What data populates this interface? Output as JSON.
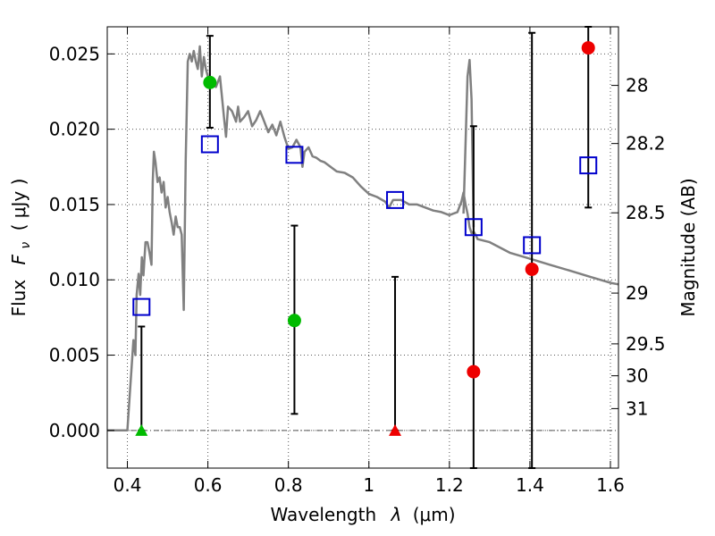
{
  "chart_data": {
    "type": "scatter",
    "xlabel_text": "Wavelength",
    "xlabel_symbol": "λ",
    "xlabel_unit": "(μm)",
    "ylabel_text": "Flux",
    "ylabel_symbol": "F",
    "ylabel_subscript": "ν",
    "ylabel_unit": "( μJy )",
    "y2label": "Magnitude (AB)",
    "xlim": [
      0.35,
      1.62
    ],
    "ylim": [
      -0.0025,
      0.0268
    ],
    "x_ticks": [
      {
        "value": 0.4,
        "label": "0.4"
      },
      {
        "value": 0.6,
        "label": "0.6"
      },
      {
        "value": 0.8,
        "label": "0.8"
      },
      {
        "value": 1.0,
        "label": "1"
      },
      {
        "value": 1.2,
        "label": "1.2"
      },
      {
        "value": 1.4,
        "label": "1.4"
      },
      {
        "value": 1.6,
        "label": "1.6"
      }
    ],
    "y_ticks": [
      {
        "value": 0.0,
        "label": "0.000"
      },
      {
        "value": 0.005,
        "label": "0.005"
      },
      {
        "value": 0.01,
        "label": "0.010"
      },
      {
        "value": 0.015,
        "label": "0.015"
      },
      {
        "value": 0.02,
        "label": "0.020"
      },
      {
        "value": 0.025,
        "label": "0.025"
      }
    ],
    "y2_ticks": [
      {
        "flux": 0.02291,
        "label": "28"
      },
      {
        "flux": 0.01905,
        "label": "28.2"
      },
      {
        "flux": 0.01445,
        "label": "28.5"
      },
      {
        "flux": 0.00912,
        "label": "29"
      },
      {
        "flux": 0.00575,
        "label": "29.5"
      },
      {
        "flux": 0.00363,
        "label": "30"
      },
      {
        "flux": 0.00145,
        "label": "31"
      }
    ],
    "grid": true,
    "model_sed": {
      "color": "#808080",
      "x": [
        0.35,
        0.4,
        0.415,
        0.42,
        0.423,
        0.428,
        0.432,
        0.436,
        0.44,
        0.445,
        0.45,
        0.455,
        0.46,
        0.463,
        0.466,
        0.47,
        0.475,
        0.48,
        0.485,
        0.49,
        0.495,
        0.5,
        0.505,
        0.51,
        0.515,
        0.52,
        0.525,
        0.53,
        0.535,
        0.54,
        0.545,
        0.55,
        0.555,
        0.56,
        0.565,
        0.57,
        0.575,
        0.58,
        0.585,
        0.59,
        0.595,
        0.6,
        0.61,
        0.62,
        0.63,
        0.64,
        0.645,
        0.65,
        0.66,
        0.67,
        0.675,
        0.68,
        0.69,
        0.7,
        0.71,
        0.72,
        0.73,
        0.74,
        0.75,
        0.76,
        0.77,
        0.78,
        0.79,
        0.8,
        0.81,
        0.82,
        0.83,
        0.835,
        0.84,
        0.85,
        0.86,
        0.87,
        0.88,
        0.89,
        0.9,
        0.92,
        0.94,
        0.96,
        0.98,
        1.0,
        1.02,
        1.04,
        1.05,
        1.06,
        1.08,
        1.1,
        1.12,
        1.14,
        1.16,
        1.18,
        1.2,
        1.22,
        1.23,
        1.235,
        1.24,
        1.245,
        1.25,
        1.255,
        1.26,
        1.265,
        1.27,
        1.3,
        1.35,
        1.4,
        1.45,
        1.5,
        1.55,
        1.6,
        1.62
      ],
      "y": [
        0.0,
        0.0,
        0.006,
        0.005,
        0.009,
        0.0104,
        0.009,
        0.0115,
        0.0103,
        0.0125,
        0.0125,
        0.0118,
        0.011,
        0.0165,
        0.0185,
        0.0178,
        0.0165,
        0.0168,
        0.0158,
        0.0165,
        0.0148,
        0.0155,
        0.0145,
        0.0138,
        0.013,
        0.0142,
        0.0135,
        0.0135,
        0.013,
        0.008,
        0.018,
        0.0245,
        0.025,
        0.0245,
        0.0252,
        0.0245,
        0.024,
        0.0255,
        0.0235,
        0.0248,
        0.024,
        0.0235,
        0.023,
        0.0228,
        0.0235,
        0.0208,
        0.0195,
        0.0215,
        0.0212,
        0.0205,
        0.0215,
        0.0205,
        0.0208,
        0.0212,
        0.0202,
        0.0206,
        0.0212,
        0.0205,
        0.0198,
        0.0203,
        0.0196,
        0.0205,
        0.0195,
        0.0187,
        0.0188,
        0.0193,
        0.0188,
        0.0175,
        0.0185,
        0.0188,
        0.0182,
        0.0181,
        0.0179,
        0.0178,
        0.0176,
        0.0172,
        0.0171,
        0.0168,
        0.0162,
        0.0157,
        0.0155,
        0.0152,
        0.0148,
        0.0153,
        0.0153,
        0.015,
        0.015,
        0.0148,
        0.0146,
        0.0145,
        0.0143,
        0.0145,
        0.0152,
        0.0158,
        0.015,
        0.0144,
        0.0135,
        0.0131,
        0.0132,
        0.013,
        0.0127,
        0.0125,
        0.0118,
        0.0114,
        0.011,
        0.0106,
        0.0102,
        0.0098,
        0.0097
      ],
      "secondary_peaks": [
        {
          "x": [
            1.235,
            1.245,
            1.25,
            1.255,
            1.26
          ],
          "y": [
            0.0144,
            0.0235,
            0.0246,
            0.022,
            0.0135
          ]
        }
      ]
    },
    "model_photometry": {
      "marker": "open-square",
      "color": "#0000cc",
      "x": [
        0.435,
        0.605,
        0.815,
        1.065,
        1.26,
        1.405,
        1.545
      ],
      "y": [
        0.0082,
        0.019,
        0.0183,
        0.0153,
        0.0135,
        0.0123,
        0.0176
      ]
    },
    "observed_green": {
      "marker": "filled-circle",
      "color": "#00bb00",
      "x": [
        0.605,
        0.815
      ],
      "y": [
        0.0231,
        0.0073
      ],
      "err_low": [
        0.0201,
        0.0011
      ],
      "err_high": [
        0.0262,
        0.0136
      ]
    },
    "observed_red": {
      "marker": "filled-circle",
      "color": "#ee0000",
      "x": [
        1.26,
        1.405,
        1.545
      ],
      "y": [
        0.0039,
        0.0107,
        0.0254
      ],
      "err_low": [
        -0.0025,
        -0.0025,
        0.0148
      ],
      "err_high": [
        0.0202,
        0.0264,
        0.0268
      ]
    },
    "upper_limits": [
      {
        "x": 0.435,
        "y": 0.0,
        "err_high": 0.0069,
        "color": "#00bb00"
      },
      {
        "x": 1.065,
        "y": 0.0,
        "err_high": 0.0102,
        "color": "#ee0000"
      }
    ]
  }
}
